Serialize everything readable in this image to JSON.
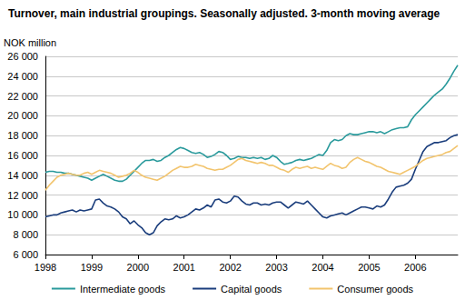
{
  "chart_data": {
    "type": "line",
    "title": "Turnover, main industrial groupings. Seasonally adjusted. 3-month moving average",
    "y_label": "NOK million",
    "categories": [
      "1998",
      null,
      null,
      null,
      null,
      null,
      null,
      null,
      null,
      null,
      null,
      null,
      "1999",
      null,
      null,
      null,
      null,
      null,
      null,
      null,
      null,
      null,
      null,
      null,
      "2000",
      null,
      null,
      null,
      null,
      null,
      null,
      null,
      null,
      null,
      null,
      null,
      "2001",
      null,
      null,
      null,
      null,
      null,
      null,
      null,
      null,
      null,
      null,
      null,
      "2002",
      null,
      null,
      null,
      null,
      null,
      null,
      null,
      null,
      null,
      null,
      null,
      "2003",
      null,
      null,
      null,
      null,
      null,
      null,
      null,
      null,
      null,
      null,
      null,
      "2004",
      null,
      null,
      null,
      null,
      null,
      null,
      null,
      null,
      null,
      null,
      null,
      "2005",
      null,
      null,
      null,
      null,
      null,
      null,
      null,
      null,
      null,
      null,
      null,
      "2006",
      null,
      null,
      null,
      null,
      null,
      null,
      null,
      null,
      null,
      null,
      null
    ],
    "series": [
      {
        "name": "Intermediate goods",
        "color": "#2a9a9c",
        "values": [
          14300,
          14400,
          14400,
          14300,
          14300,
          14200,
          14200,
          14100,
          14000,
          13900,
          13800,
          13700,
          13500,
          13700,
          13900,
          14100,
          13900,
          13700,
          13500,
          13400,
          13400,
          13600,
          14000,
          14400,
          14800,
          15200,
          15500,
          15500,
          15600,
          15400,
          15500,
          15800,
          16000,
          16300,
          16600,
          16800,
          16700,
          16500,
          16300,
          16200,
          16300,
          16100,
          15800,
          15900,
          16100,
          16400,
          16300,
          16000,
          15600,
          15700,
          15900,
          15800,
          15800,
          15700,
          15800,
          15700,
          15800,
          15600,
          15700,
          16000,
          15800,
          15400,
          15100,
          15200,
          15300,
          15500,
          15600,
          15500,
          15600,
          15700,
          15900,
          16100,
          16000,
          16500,
          17300,
          17600,
          17500,
          17600,
          18000,
          18200,
          18100,
          18100,
          18200,
          18300,
          18400,
          18400,
          18300,
          18400,
          18200,
          18400,
          18600,
          18700,
          18800,
          18800,
          18900,
          19600,
          20100,
          20500,
          20900,
          21300,
          21700,
          22100,
          22400,
          22700,
          23200,
          23800,
          24500,
          25100
        ]
      },
      {
        "name": "Capital goods",
        "color": "#1a3d7c",
        "values": [
          9800,
          9900,
          10000,
          10000,
          10200,
          10300,
          10400,
          10500,
          10300,
          10500,
          10400,
          10500,
          10600,
          11500,
          11600,
          11200,
          10900,
          10800,
          10600,
          10300,
          9800,
          9600,
          9100,
          9400,
          9000,
          8700,
          8200,
          8000,
          8200,
          8900,
          9300,
          9600,
          9500,
          9600,
          9900,
          9700,
          9800,
          10000,
          10300,
          10600,
          10500,
          10700,
          11000,
          10800,
          11500,
          11600,
          11300,
          11200,
          11400,
          11900,
          11800,
          11400,
          11100,
          11000,
          11200,
          11200,
          11000,
          11100,
          11000,
          11200,
          11300,
          11300,
          11000,
          10700,
          11000,
          11300,
          11200,
          11100,
          11400,
          11000,
          10600,
          10200,
          9800,
          9700,
          9900,
          10000,
          10100,
          10200,
          10000,
          10200,
          10400,
          10600,
          10800,
          10800,
          10700,
          10600,
          10900,
          10800,
          11000,
          11600,
          12300,
          12800,
          12900,
          13000,
          13200,
          13600,
          14600,
          15500,
          16400,
          16900,
          17100,
          17300,
          17300,
          17400,
          17500,
          17800,
          18000,
          18100
        ]
      },
      {
        "name": "Consumer goods",
        "color": "#f2c46d",
        "values": [
          12500,
          13000,
          13400,
          13800,
          14000,
          14100,
          14200,
          14100,
          14000,
          14000,
          14200,
          14300,
          14100,
          14300,
          14500,
          14400,
          14300,
          14200,
          14000,
          13800,
          13900,
          14000,
          14200,
          14500,
          14300,
          14000,
          13800,
          13700,
          13600,
          13500,
          13700,
          13900,
          14200,
          14500,
          14700,
          14900,
          14800,
          14800,
          14900,
          15100,
          15000,
          14900,
          14700,
          14600,
          14500,
          14600,
          14600,
          14800,
          15000,
          15300,
          15600,
          15700,
          15500,
          15400,
          15300,
          15200,
          15300,
          15200,
          15000,
          15000,
          14800,
          14600,
          14500,
          14300,
          14600,
          14800,
          14700,
          14800,
          14900,
          14700,
          14800,
          14700,
          14600,
          14900,
          15200,
          15000,
          14900,
          14700,
          14800,
          15300,
          15600,
          15800,
          15600,
          15400,
          15300,
          15100,
          14900,
          14800,
          14600,
          14400,
          14300,
          14200,
          14100,
          14300,
          14500,
          14700,
          14900,
          15200,
          15500,
          15700,
          15800,
          15900,
          16000,
          16100,
          16300,
          16400,
          16700,
          17000
        ]
      }
    ],
    "ylim": [
      6000,
      26000
    ],
    "yticks": [
      {
        "value": 6000,
        "label": "6 000"
      },
      {
        "value": 8000,
        "label": "8 000"
      },
      {
        "value": 10000,
        "label": "10 000"
      },
      {
        "value": 12000,
        "label": "12 000"
      },
      {
        "value": 14000,
        "label": "14 000"
      },
      {
        "value": 16000,
        "label": "16 000"
      },
      {
        "value": 18000,
        "label": "18 000"
      },
      {
        "value": 20000,
        "label": "20 000"
      },
      {
        "value": 22000,
        "label": "22 000"
      },
      {
        "value": 24000,
        "label": "24 000"
      },
      {
        "value": 26000,
        "label": "26 000"
      }
    ],
    "grid": true,
    "legend": "bottom"
  }
}
